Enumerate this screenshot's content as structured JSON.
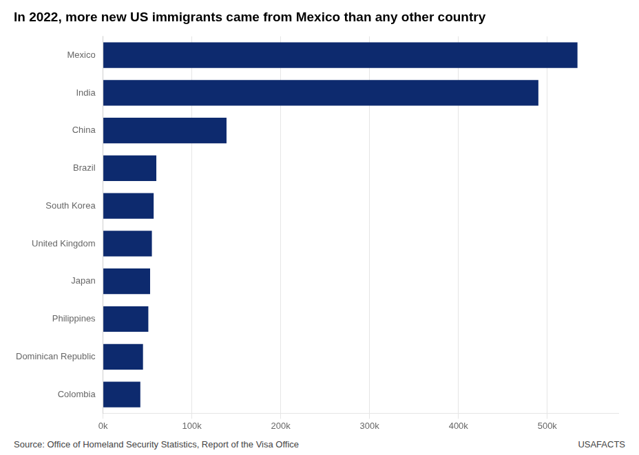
{
  "chart_data": {
    "type": "bar",
    "orientation": "horizontal",
    "title": "In 2022, more new US immigrants came from Mexico than any other country",
    "categories": [
      "Mexico",
      "India",
      "China",
      "Brazil",
      "South Korea",
      "United Kingdom",
      "Japan",
      "Philippines",
      "Dominican Republic",
      "Colombia"
    ],
    "values": [
      534000,
      490000,
      139000,
      60000,
      57000,
      55000,
      53000,
      51000,
      45000,
      42000
    ],
    "color": "#0d2a6e",
    "xlim": [
      0,
      580000
    ],
    "xticks": [
      {
        "value": 0,
        "label": "0k"
      },
      {
        "value": 100000,
        "label": "100k"
      },
      {
        "value": 200000,
        "label": "200k"
      },
      {
        "value": 300000,
        "label": "300k"
      },
      {
        "value": 400000,
        "label": "400k"
      },
      {
        "value": 500000,
        "label": "500k"
      }
    ],
    "grid": true,
    "annotations": [
      "Source: Office of Homeland Security Statistics, Report of the Visa Office",
      "USAFACTS"
    ]
  }
}
